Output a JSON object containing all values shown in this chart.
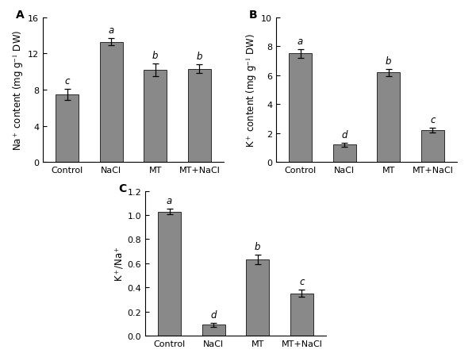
{
  "categories": [
    "Control",
    "NaCl",
    "MT",
    "MT+NaCl"
  ],
  "panel_A": {
    "label": "A",
    "ylabel": "Na$^+$ content (mg g$^{-1}$ DW)",
    "values": [
      7.5,
      13.3,
      10.2,
      10.3
    ],
    "errors": [
      0.6,
      0.4,
      0.7,
      0.5
    ],
    "sig_labels": [
      "c",
      "a",
      "b",
      "b"
    ],
    "ylim": [
      0,
      16
    ],
    "yticks": [
      0,
      4,
      8,
      12,
      16
    ]
  },
  "panel_B": {
    "label": "B",
    "ylabel": "K$^+$ content (mg g$^{-1}$ DW)",
    "values": [
      7.5,
      1.2,
      6.2,
      2.2
    ],
    "errors": [
      0.3,
      0.15,
      0.25,
      0.15
    ],
    "sig_labels": [
      "a",
      "d",
      "b",
      "c"
    ],
    "ylim": [
      0,
      10
    ],
    "yticks": [
      0,
      2,
      4,
      6,
      8,
      10
    ]
  },
  "panel_C": {
    "label": "C",
    "ylabel": "K$^+$/Na$^+$",
    "values": [
      1.03,
      0.09,
      0.63,
      0.35
    ],
    "errors": [
      0.025,
      0.015,
      0.04,
      0.03
    ],
    "sig_labels": [
      "a",
      "d",
      "b",
      "c"
    ],
    "ylim": [
      0,
      1.2
    ],
    "yticks": [
      0.0,
      0.2,
      0.4,
      0.6,
      0.8,
      1.0,
      1.2
    ]
  },
  "bar_color": "#898989",
  "bar_width": 0.52,
  "bar_edge_color": "#2a2a2a",
  "bar_edge_width": 0.7,
  "error_color": "black",
  "error_capsize": 3,
  "error_linewidth": 0.9,
  "sig_fontsize": 8.5,
  "axis_label_fontsize": 8.5,
  "tick_fontsize": 8,
  "panel_label_fontsize": 10,
  "background_color": "#ffffff"
}
